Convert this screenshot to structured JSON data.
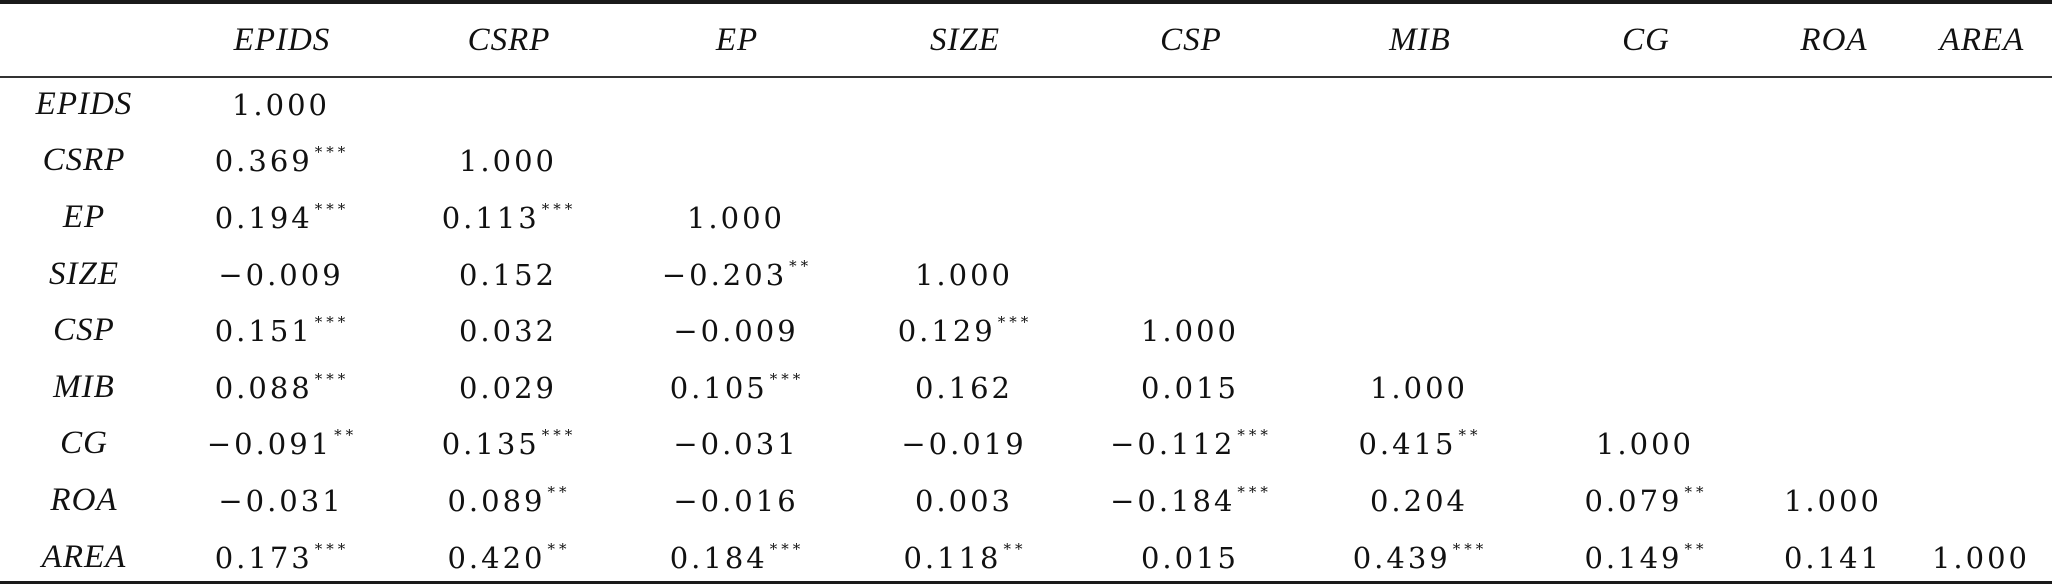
{
  "table": {
    "columns": [
      "",
      "EPIDS",
      "CSRP",
      "EP",
      "SIZE",
      "CSP",
      "MIB",
      "CG",
      "ROA",
      "AREA"
    ],
    "rows": [
      {
        "label": "EPIDS",
        "cells": [
          {
            "num": "1.000",
            "stars": ""
          },
          {
            "num": "",
            "stars": ""
          },
          {
            "num": "",
            "stars": ""
          },
          {
            "num": "",
            "stars": ""
          },
          {
            "num": "",
            "stars": ""
          },
          {
            "num": "",
            "stars": ""
          },
          {
            "num": "",
            "stars": ""
          },
          {
            "num": "",
            "stars": ""
          },
          {
            "num": "",
            "stars": ""
          }
        ]
      },
      {
        "label": "CSRP",
        "cells": [
          {
            "num": "0.369",
            "stars": "***"
          },
          {
            "num": "1.000",
            "stars": ""
          },
          {
            "num": "",
            "stars": ""
          },
          {
            "num": "",
            "stars": ""
          },
          {
            "num": "",
            "stars": ""
          },
          {
            "num": "",
            "stars": ""
          },
          {
            "num": "",
            "stars": ""
          },
          {
            "num": "",
            "stars": ""
          },
          {
            "num": "",
            "stars": ""
          }
        ]
      },
      {
        "label": "EP",
        "cells": [
          {
            "num": "0.194",
            "stars": "***"
          },
          {
            "num": "0.113",
            "stars": "***"
          },
          {
            "num": "1.000",
            "stars": ""
          },
          {
            "num": "",
            "stars": ""
          },
          {
            "num": "",
            "stars": ""
          },
          {
            "num": "",
            "stars": ""
          },
          {
            "num": "",
            "stars": ""
          },
          {
            "num": "",
            "stars": ""
          },
          {
            "num": "",
            "stars": ""
          }
        ]
      },
      {
        "label": "SIZE",
        "cells": [
          {
            "num": "−0.009",
            "stars": ""
          },
          {
            "num": "0.152",
            "stars": ""
          },
          {
            "num": "−0.203",
            "stars": "**"
          },
          {
            "num": "1.000",
            "stars": ""
          },
          {
            "num": "",
            "stars": ""
          },
          {
            "num": "",
            "stars": ""
          },
          {
            "num": "",
            "stars": ""
          },
          {
            "num": "",
            "stars": ""
          },
          {
            "num": "",
            "stars": ""
          }
        ]
      },
      {
        "label": "CSP",
        "cells": [
          {
            "num": "0.151",
            "stars": "***"
          },
          {
            "num": "0.032",
            "stars": ""
          },
          {
            "num": "−0.009",
            "stars": ""
          },
          {
            "num": "0.129",
            "stars": "***"
          },
          {
            "num": "1.000",
            "stars": ""
          },
          {
            "num": "",
            "stars": ""
          },
          {
            "num": "",
            "stars": ""
          },
          {
            "num": "",
            "stars": ""
          },
          {
            "num": "",
            "stars": ""
          }
        ]
      },
      {
        "label": "MIB",
        "cells": [
          {
            "num": "0.088",
            "stars": "***"
          },
          {
            "num": "0.029",
            "stars": ""
          },
          {
            "num": "0.105",
            "stars": "***"
          },
          {
            "num": "0.162",
            "stars": ""
          },
          {
            "num": "0.015",
            "stars": ""
          },
          {
            "num": "1.000",
            "stars": ""
          },
          {
            "num": "",
            "stars": ""
          },
          {
            "num": "",
            "stars": ""
          },
          {
            "num": "",
            "stars": ""
          }
        ]
      },
      {
        "label": "CG",
        "cells": [
          {
            "num": "−0.091",
            "stars": "**"
          },
          {
            "num": "0.135",
            "stars": "***"
          },
          {
            "num": "−0.031",
            "stars": ""
          },
          {
            "num": "−0.019",
            "stars": ""
          },
          {
            "num": "−0.112",
            "stars": "***"
          },
          {
            "num": "0.415",
            "stars": "**"
          },
          {
            "num": "1.000",
            "stars": ""
          },
          {
            "num": "",
            "stars": ""
          },
          {
            "num": "",
            "stars": ""
          }
        ]
      },
      {
        "label": "ROA",
        "cells": [
          {
            "num": "−0.031",
            "stars": ""
          },
          {
            "num": "0.089",
            "stars": "**"
          },
          {
            "num": "−0.016",
            "stars": ""
          },
          {
            "num": "0.003",
            "stars": ""
          },
          {
            "num": "−0.184",
            "stars": "***"
          },
          {
            "num": "0.204",
            "stars": ""
          },
          {
            "num": "0.079",
            "stars": "**"
          },
          {
            "num": "1.000",
            "stars": ""
          },
          {
            "num": "",
            "stars": ""
          }
        ]
      },
      {
        "label": "AREA",
        "cells": [
          {
            "num": "0.173",
            "stars": "***"
          },
          {
            "num": "0.420",
            "stars": "**"
          },
          {
            "num": "0.184",
            "stars": "***"
          },
          {
            "num": "0.118",
            "stars": "**"
          },
          {
            "num": "0.015",
            "stars": ""
          },
          {
            "num": "0.439",
            "stars": "***"
          },
          {
            "num": "0.149",
            "stars": "**"
          },
          {
            "num": "0.141",
            "stars": ""
          },
          {
            "num": "1.000",
            "stars": ""
          }
        ]
      }
    ]
  }
}
